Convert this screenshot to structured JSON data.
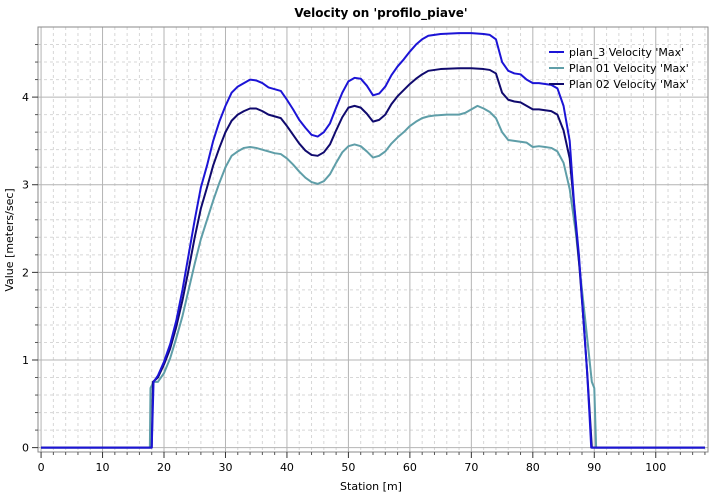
{
  "chart_data": {
    "type": "line",
    "title": "Velocity on 'profilo_piave'",
    "xlabel": "Station [m]",
    "ylabel": "Value [meters/sec]",
    "xlim": [
      -0.5,
      108.5
    ],
    "ylim": [
      -0.05,
      4.8
    ],
    "x_ticks": [
      0,
      10,
      20,
      30,
      40,
      50,
      60,
      70,
      80,
      90,
      100
    ],
    "y_ticks": [
      0,
      1,
      2,
      3,
      4
    ],
    "grid": true,
    "legend_position": "top-right",
    "series": [
      {
        "name": "plan_3 Velocity 'Max'",
        "color": "#1c14d6",
        "points": [
          [
            0,
            0
          ],
          [
            18,
            0
          ],
          [
            18.3,
            0.75
          ],
          [
            19,
            0.82
          ],
          [
            20,
            0.98
          ],
          [
            21,
            1.18
          ],
          [
            22,
            1.45
          ],
          [
            23,
            1.8
          ],
          [
            24,
            2.2
          ],
          [
            25,
            2.6
          ],
          [
            26,
            2.97
          ],
          [
            27,
            3.22
          ],
          [
            28,
            3.5
          ],
          [
            29,
            3.72
          ],
          [
            30,
            3.9
          ],
          [
            31,
            4.05
          ],
          [
            32,
            4.12
          ],
          [
            33,
            4.16
          ],
          [
            34,
            4.2
          ],
          [
            35,
            4.19
          ],
          [
            36,
            4.16
          ],
          [
            37,
            4.11
          ],
          [
            38,
            4.09
          ],
          [
            39,
            4.07
          ],
          [
            40,
            3.97
          ],
          [
            41,
            3.86
          ],
          [
            42,
            3.74
          ],
          [
            43,
            3.65
          ],
          [
            44,
            3.57
          ],
          [
            45,
            3.55
          ],
          [
            46,
            3.6
          ],
          [
            47,
            3.7
          ],
          [
            48,
            3.88
          ],
          [
            49,
            4.05
          ],
          [
            50,
            4.18
          ],
          [
            51,
            4.22
          ],
          [
            52,
            4.21
          ],
          [
            53,
            4.13
          ],
          [
            54,
            4.02
          ],
          [
            55,
            4.04
          ],
          [
            56,
            4.12
          ],
          [
            57,
            4.25
          ],
          [
            58,
            4.35
          ],
          [
            59,
            4.43
          ],
          [
            60,
            4.52
          ],
          [
            61,
            4.6
          ],
          [
            62,
            4.66
          ],
          [
            63,
            4.7
          ],
          [
            65,
            4.72
          ],
          [
            68,
            4.73
          ],
          [
            70,
            4.73
          ],
          [
            72,
            4.72
          ],
          [
            73,
            4.71
          ],
          [
            74,
            4.66
          ],
          [
            75,
            4.4
          ],
          [
            76,
            4.3
          ],
          [
            77,
            4.27
          ],
          [
            78,
            4.26
          ],
          [
            79,
            4.2
          ],
          [
            80,
            4.16
          ],
          [
            81,
            4.16
          ],
          [
            82,
            4.15
          ],
          [
            83,
            4.14
          ],
          [
            84,
            4.1
          ],
          [
            85,
            3.9
          ],
          [
            86,
            3.5
          ],
          [
            86.7,
            2.8
          ],
          [
            87.5,
            2.2
          ],
          [
            88.2,
            1.5
          ],
          [
            88.8,
            0.9
          ],
          [
            89.2,
            0.4
          ],
          [
            89.5,
            0
          ],
          [
            108,
            0
          ]
        ]
      },
      {
        "name": "Plan 01 Velocity 'Max'",
        "color": "#5f9ea8",
        "points": [
          [
            0,
            0
          ],
          [
            17.7,
            0
          ],
          [
            17.8,
            0.68
          ],
          [
            18.3,
            0.75
          ],
          [
            19,
            0.75
          ],
          [
            20,
            0.85
          ],
          [
            21,
            1.02
          ],
          [
            22,
            1.25
          ],
          [
            23,
            1.5
          ],
          [
            24,
            1.8
          ],
          [
            25,
            2.1
          ],
          [
            26,
            2.38
          ],
          [
            27,
            2.6
          ],
          [
            28,
            2.82
          ],
          [
            29,
            3.02
          ],
          [
            30,
            3.2
          ],
          [
            31,
            3.33
          ],
          [
            32,
            3.38
          ],
          [
            33,
            3.42
          ],
          [
            34,
            3.43
          ],
          [
            35,
            3.42
          ],
          [
            36,
            3.4
          ],
          [
            37,
            3.38
          ],
          [
            38,
            3.36
          ],
          [
            39,
            3.35
          ],
          [
            40,
            3.3
          ],
          [
            41,
            3.23
          ],
          [
            42,
            3.15
          ],
          [
            43,
            3.08
          ],
          [
            44,
            3.03
          ],
          [
            45,
            3.01
          ],
          [
            46,
            3.04
          ],
          [
            47,
            3.12
          ],
          [
            48,
            3.25
          ],
          [
            49,
            3.37
          ],
          [
            50,
            3.44
          ],
          [
            51,
            3.46
          ],
          [
            52,
            3.44
          ],
          [
            53,
            3.38
          ],
          [
            54,
            3.31
          ],
          [
            55,
            3.33
          ],
          [
            56,
            3.38
          ],
          [
            57,
            3.47
          ],
          [
            58,
            3.54
          ],
          [
            59,
            3.6
          ],
          [
            60,
            3.67
          ],
          [
            61,
            3.72
          ],
          [
            62,
            3.76
          ],
          [
            63,
            3.78
          ],
          [
            64,
            3.79
          ],
          [
            66,
            3.8
          ],
          [
            68,
            3.8
          ],
          [
            69,
            3.82
          ],
          [
            70,
            3.86
          ],
          [
            71,
            3.9
          ],
          [
            72,
            3.87
          ],
          [
            73,
            3.83
          ],
          [
            74,
            3.76
          ],
          [
            75,
            3.6
          ],
          [
            76,
            3.51
          ],
          [
            77,
            3.5
          ],
          [
            78,
            3.49
          ],
          [
            79,
            3.48
          ],
          [
            80,
            3.43
          ],
          [
            81,
            3.44
          ],
          [
            82,
            3.43
          ],
          [
            83,
            3.42
          ],
          [
            84,
            3.38
          ],
          [
            85,
            3.25
          ],
          [
            86,
            2.95
          ],
          [
            87,
            2.45
          ],
          [
            88,
            1.8
          ],
          [
            89,
            1.15
          ],
          [
            89.6,
            0.75
          ],
          [
            90,
            0.68
          ],
          [
            90.3,
            0
          ],
          [
            108,
            0
          ]
        ]
      },
      {
        "name": "Plan 02 Velocity 'Max'",
        "color": "#100a6e",
        "points": [
          [
            0,
            0
          ],
          [
            18,
            0
          ],
          [
            18.2,
            0.75
          ],
          [
            19,
            0.8
          ],
          [
            20,
            0.95
          ],
          [
            21,
            1.13
          ],
          [
            22,
            1.38
          ],
          [
            23,
            1.68
          ],
          [
            24,
            2.03
          ],
          [
            25,
            2.4
          ],
          [
            26,
            2.73
          ],
          [
            27,
            2.97
          ],
          [
            28,
            3.22
          ],
          [
            29,
            3.42
          ],
          [
            30,
            3.6
          ],
          [
            31,
            3.73
          ],
          [
            32,
            3.8
          ],
          [
            33,
            3.84
          ],
          [
            34,
            3.87
          ],
          [
            35,
            3.87
          ],
          [
            36,
            3.84
          ],
          [
            37,
            3.8
          ],
          [
            38,
            3.78
          ],
          [
            39,
            3.76
          ],
          [
            40,
            3.67
          ],
          [
            41,
            3.57
          ],
          [
            42,
            3.47
          ],
          [
            43,
            3.39
          ],
          [
            44,
            3.34
          ],
          [
            45,
            3.33
          ],
          [
            46,
            3.37
          ],
          [
            47,
            3.46
          ],
          [
            48,
            3.62
          ],
          [
            49,
            3.77
          ],
          [
            50,
            3.88
          ],
          [
            51,
            3.9
          ],
          [
            52,
            3.88
          ],
          [
            53,
            3.81
          ],
          [
            54,
            3.72
          ],
          [
            55,
            3.74
          ],
          [
            56,
            3.8
          ],
          [
            57,
            3.92
          ],
          [
            58,
            4.01
          ],
          [
            59,
            4.08
          ],
          [
            60,
            4.15
          ],
          [
            61,
            4.21
          ],
          [
            62,
            4.26
          ],
          [
            63,
            4.3
          ],
          [
            65,
            4.32
          ],
          [
            68,
            4.33
          ],
          [
            70,
            4.33
          ],
          [
            72,
            4.32
          ],
          [
            73,
            4.31
          ],
          [
            74,
            4.27
          ],
          [
            75,
            4.05
          ],
          [
            76,
            3.97
          ],
          [
            77,
            3.95
          ],
          [
            78,
            3.94
          ],
          [
            79,
            3.9
          ],
          [
            80,
            3.86
          ],
          [
            81,
            3.86
          ],
          [
            82,
            3.85
          ],
          [
            83,
            3.84
          ],
          [
            84,
            3.8
          ],
          [
            85,
            3.62
          ],
          [
            86,
            3.3
          ],
          [
            86.8,
            2.7
          ],
          [
            87.6,
            2.05
          ],
          [
            88.3,
            1.4
          ],
          [
            88.9,
            0.8
          ],
          [
            89.3,
            0.35
          ],
          [
            89.6,
            0
          ],
          [
            108,
            0
          ]
        ]
      }
    ]
  }
}
